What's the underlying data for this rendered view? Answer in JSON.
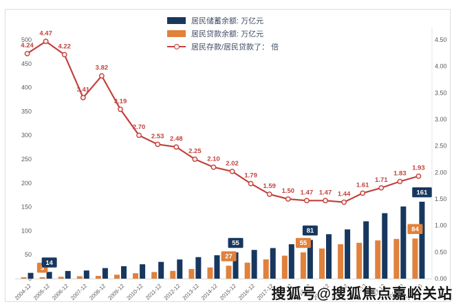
{
  "colors": {
    "savings_navy": "#17375e",
    "loans_orange": "#e0813c",
    "ratio_red": "#c2403b",
    "axis_text_gray": "#595959",
    "line_label_red": "#c2443f",
    "frame_gray": "#dcdcdc"
  },
  "legend": {
    "items": [
      {
        "label": "居民储蓄余额: 万亿元",
        "swatch": "bar",
        "color": "#17375e"
      },
      {
        "label": "居民贷款余额: 万亿元",
        "swatch": "bar",
        "color": "#e0813c"
      },
      {
        "label": "居民存款/居民贷款了： 倍",
        "swatch": "line",
        "color": "#c2403b"
      }
    ]
  },
  "watermark": {
    "text": "搜狐号@搜狐焦点嘉峪关站"
  },
  "chart_data": {
    "type": "bar",
    "subtype": "grouped-bars-with-line-on-secondary-axis",
    "categories": [
      "2004-12",
      "2005-12",
      "2006-12",
      "2007-12",
      "2008-12",
      "2009-12",
      "2010-12",
      "2011-12",
      "2012-12",
      "2013-12",
      "2014-12",
      "2015-12",
      "2016-12",
      "2017-12",
      "2018-12",
      "2019-12",
      "2020-12",
      "2021-12",
      "2022-12",
      "2023-12",
      "2024-12",
      "2025-06"
    ],
    "series": [
      {
        "key": "savings",
        "name": "居民储蓄余额: 万亿元",
        "type": "bar",
        "slot": 1,
        "axis": "left",
        "color": "#17375e",
        "values": [
          12,
          14,
          16,
          17,
          22,
          26,
          30,
          35,
          40,
          45,
          49,
          55,
          60,
          64,
          72,
          81,
          93,
          103,
          120,
          137,
          151,
          161
        ]
      },
      {
        "key": "loans",
        "name": "居民贷款余额: 万亿元",
        "type": "bar",
        "slot": 0,
        "axis": "left",
        "color": "#e0813c",
        "values": [
          2.8,
          3,
          3.8,
          5,
          5.7,
          8.2,
          11.3,
          13.8,
          16.1,
          20,
          23.3,
          27,
          33.4,
          40.3,
          48,
          55,
          63,
          72,
          75,
          80,
          83,
          84
        ]
      },
      {
        "key": "ratio",
        "name": "居民存款/居民贷款了： 倍",
        "type": "line",
        "axis": "right",
        "color": "#c2403b",
        "point_labels": true,
        "values": [
          4.24,
          4.47,
          4.22,
          3.41,
          3.82,
          3.19,
          2.7,
          2.53,
          2.48,
          2.25,
          2.1,
          2.02,
          1.79,
          1.59,
          1.5,
          1.47,
          1.47,
          1.44,
          1.61,
          1.71,
          1.83,
          1.93
        ]
      }
    ],
    "bar_labels": [
      {
        "cat": 1,
        "series": "loans",
        "text": "3"
      },
      {
        "cat": 1,
        "series": "savings",
        "text": "14"
      },
      {
        "cat": 11,
        "series": "loans",
        "text": "27"
      },
      {
        "cat": 11,
        "series": "savings",
        "text": "55"
      },
      {
        "cat": 15,
        "series": "loans",
        "text": "55"
      },
      {
        "cat": 15,
        "series": "savings",
        "text": "81"
      },
      {
        "cat": 21,
        "series": "loans",
        "text": "84"
      },
      {
        "cat": 21,
        "series": "savings",
        "text": "161"
      }
    ],
    "left_axis": {
      "ticks": [
        0,
        50,
        100,
        150,
        200,
        250,
        300,
        350,
        400,
        450,
        500
      ],
      "max": 500
    },
    "right_axis": {
      "ticks": [
        0,
        0.5,
        1,
        1.5,
        2,
        2.5,
        3,
        3.5,
        4,
        4.5
      ],
      "max": 4.5,
      "format": "2dp"
    },
    "title": "",
    "grid": false,
    "legend_position": "top-center"
  }
}
